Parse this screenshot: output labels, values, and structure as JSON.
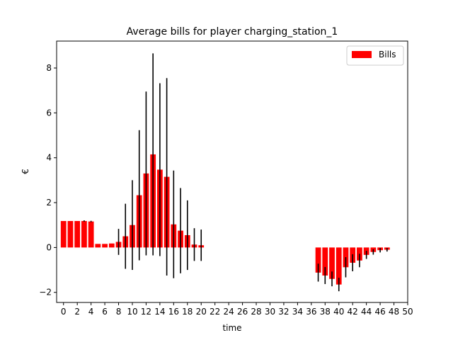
{
  "chart_data": {
    "type": "bar",
    "title": "Average bills for player charging_station_1",
    "xlabel": "time",
    "ylabel": "€",
    "xlim": [
      -1,
      50
    ],
    "ylim": [
      -2.45,
      9.2
    ],
    "xticks": [
      0,
      2,
      4,
      6,
      8,
      10,
      12,
      14,
      16,
      18,
      20,
      22,
      24,
      26,
      28,
      30,
      32,
      34,
      36,
      38,
      40,
      42,
      44,
      46,
      48,
      50
    ],
    "yticks": [
      -2,
      0,
      2,
      4,
      6,
      8
    ],
    "legend": {
      "position": "top-right",
      "label": "Bills"
    },
    "bar_color": "#ff0000",
    "error_color": "#000000",
    "x": [
      0,
      1,
      2,
      3,
      4,
      5,
      6,
      7,
      8,
      9,
      10,
      11,
      12,
      13,
      14,
      15,
      16,
      17,
      18,
      19,
      20,
      37,
      38,
      39,
      40,
      41,
      42,
      43,
      44,
      45,
      46,
      47
    ],
    "values": [
      1.18,
      1.18,
      1.18,
      1.18,
      1.16,
      0.16,
      0.16,
      0.18,
      0.25,
      0.5,
      1.0,
      2.33,
      3.3,
      4.15,
      3.47,
      3.15,
      1.03,
      0.75,
      0.55,
      0.13,
      0.1,
      -1.12,
      -1.25,
      -1.4,
      -1.65,
      -0.88,
      -0.68,
      -0.58,
      -0.33,
      -0.2,
      -0.12,
      -0.1
    ],
    "errors": [
      0,
      0,
      0,
      0.03,
      0.03,
      0,
      0,
      0,
      0.58,
      1.45,
      2.0,
      2.9,
      3.65,
      4.5,
      3.85,
      4.4,
      2.4,
      1.9,
      1.55,
      0.73,
      0.7,
      0.4,
      0.38,
      0.33,
      0.3,
      0.45,
      0.38,
      0.3,
      0.18,
      0.12,
      0.1,
      0.08
    ]
  }
}
